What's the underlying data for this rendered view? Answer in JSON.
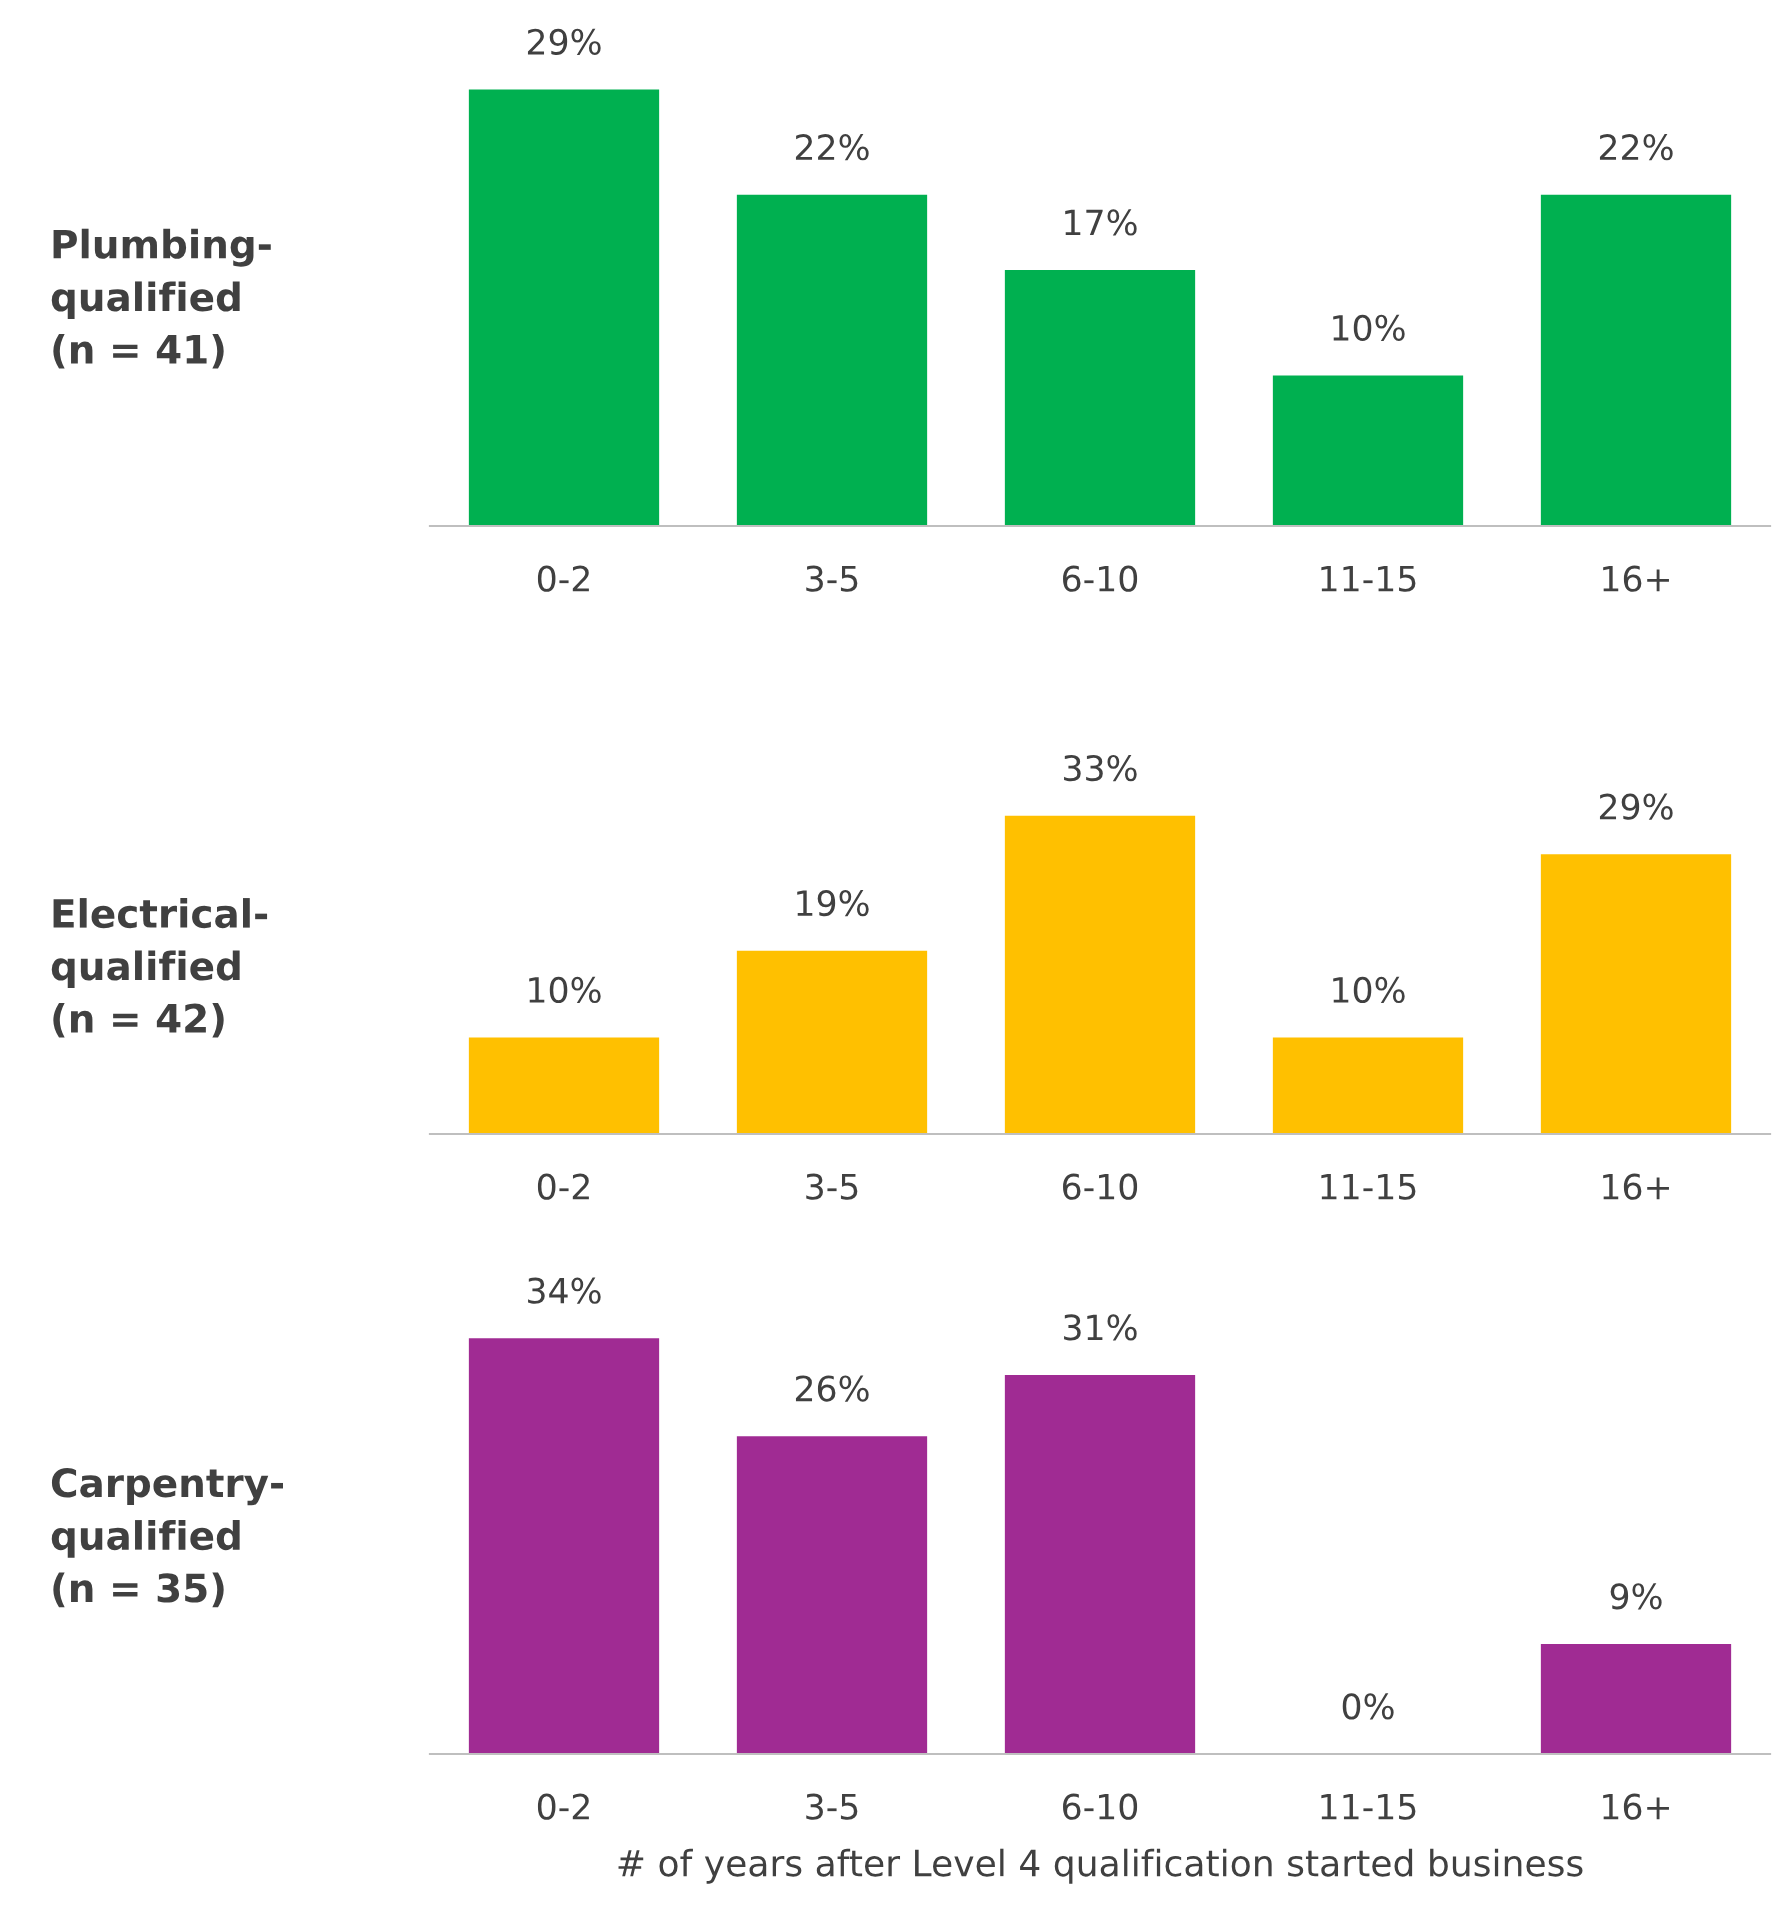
{
  "chart_data": [
    {
      "type": "bar",
      "title": "Plumbing-\nqualified\n(n = 41)",
      "categories": [
        "0-2",
        "3-5",
        "6-10",
        "11-15",
        "16+"
      ],
      "values": [
        29,
        22,
        17,
        10,
        22
      ],
      "color": "#00b050",
      "data_labels": true,
      "value_labels": [
        "29%",
        "22%",
        "17%",
        "10%",
        "22%"
      ],
      "tick_labels": "x"
    },
    {
      "type": "bar",
      "title": "Electrical-\nqualified\n(n = 42)",
      "categories": [
        "0-2",
        "3-5",
        "6-10",
        "11-15",
        "16+"
      ],
      "values": [
        10,
        19,
        33,
        10,
        29
      ],
      "color": "#ffc000",
      "data_labels": true,
      "value_labels": [
        "10%",
        "19%",
        "33%",
        "10%",
        "29%"
      ],
      "tick_labels": "x"
    },
    {
      "type": "bar",
      "title": "Carpentry-\nqualified\n(n = 35)",
      "categories": [
        "0-2",
        "3-5",
        "6-10",
        "11-15",
        "16+"
      ],
      "values": [
        34,
        26,
        31,
        0,
        9
      ],
      "color": "#a02b93",
      "data_labels": true,
      "value_labels": [
        "34%",
        "26%",
        "31%",
        "0%",
        "9%"
      ],
      "tick_labels": "x",
      "xlabel": "# of years after Level 4 qualification started business"
    }
  ]
}
